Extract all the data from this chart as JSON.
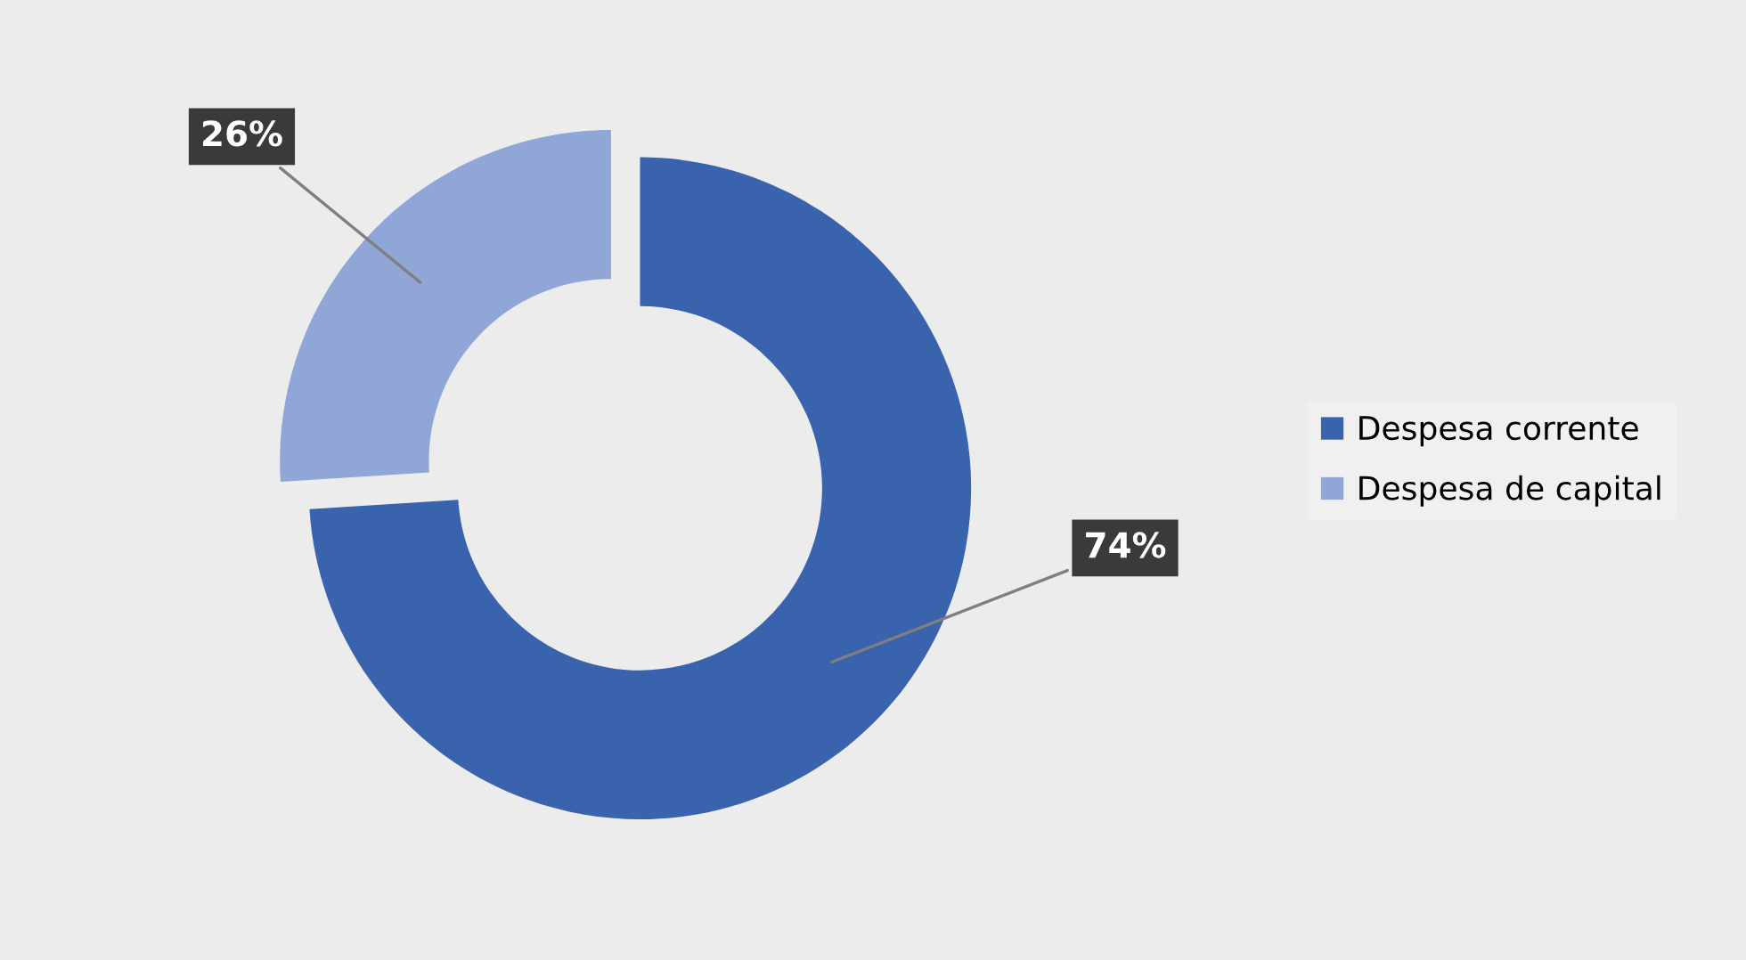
{
  "chart_data": {
    "type": "donut",
    "categories": [
      "Despesa corrente",
      "Despesa de capital"
    ],
    "values": [
      74,
      26
    ],
    "colors": [
      "#3a63ad",
      "#8fa6d6"
    ],
    "value_labels": [
      "74%",
      "26%"
    ],
    "legend": "right"
  }
}
